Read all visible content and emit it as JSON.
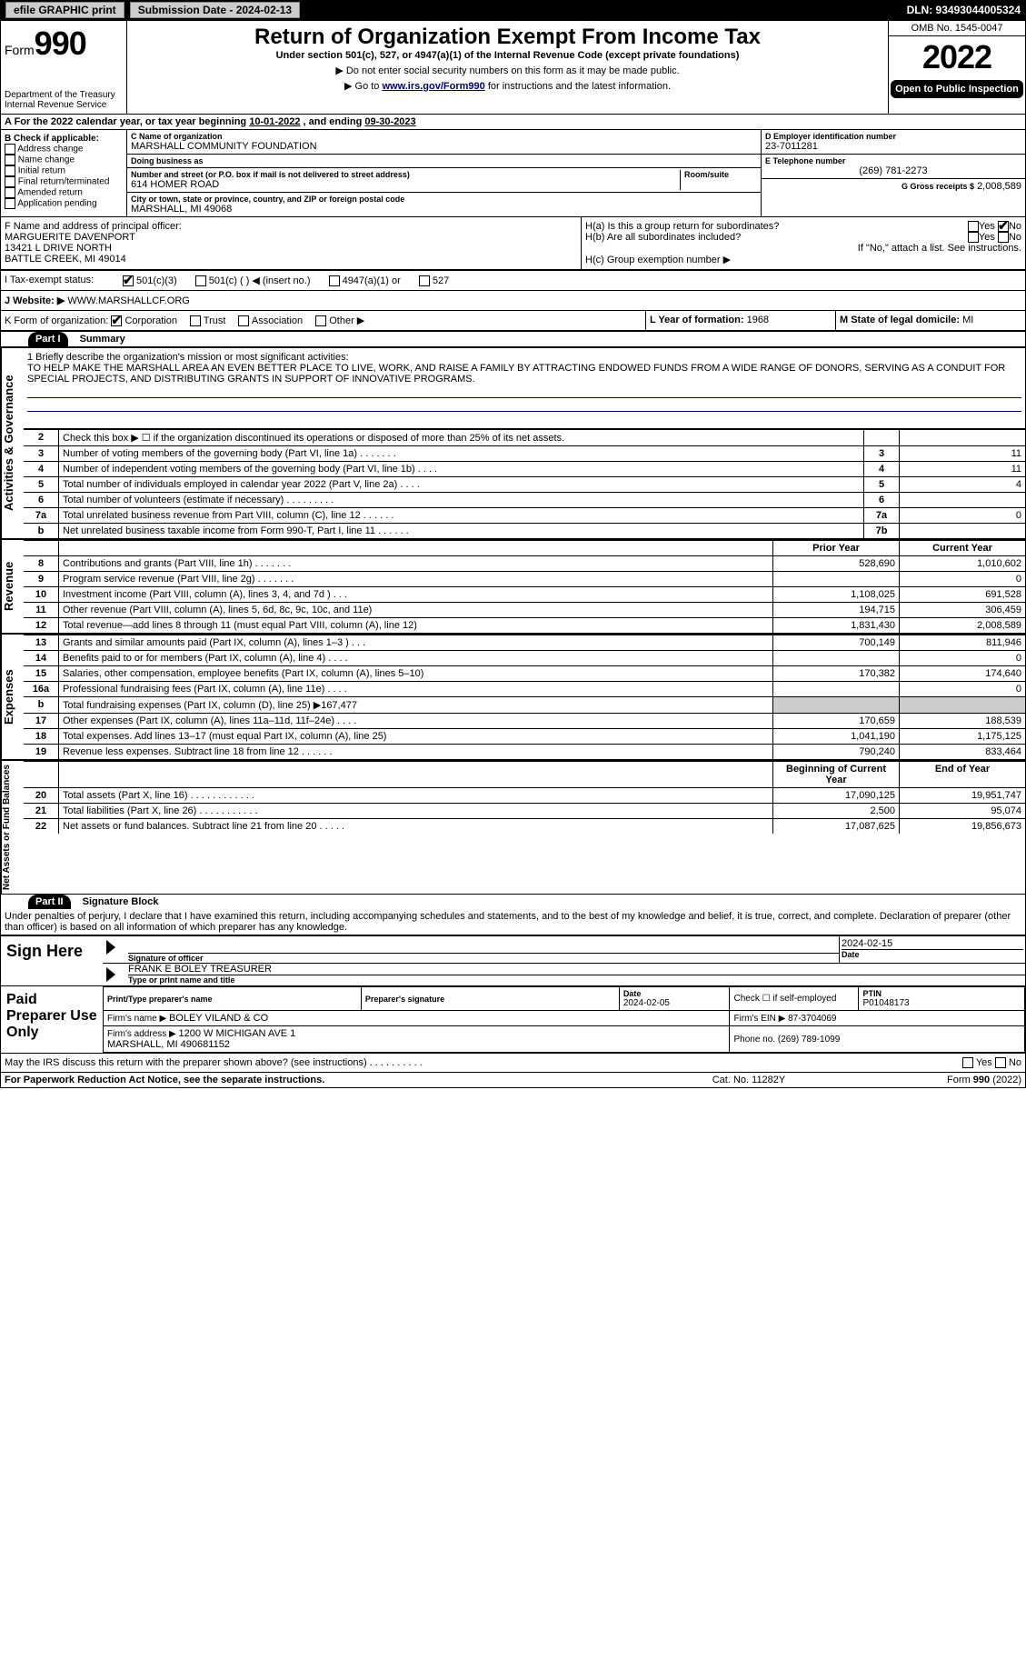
{
  "topbar": {
    "efile": "efile GRAPHIC print",
    "submission_btn": "Submission Date - 2024-02-13",
    "dln": "DLN: 93493044005324"
  },
  "header": {
    "form_label": "Form",
    "form_number": "990",
    "title": "Return of Organization Exempt From Income Tax",
    "subtitle": "Under section 501(c), 527, or 4947(a)(1) of the Internal Revenue Code (except private foundations)",
    "warn": "▶ Do not enter social security numbers on this form as it may be made public.",
    "goto_pre": "▶ Go to ",
    "goto_link": "www.irs.gov/Form990",
    "goto_post": " for instructions and the latest information.",
    "dept1": "Department of the Treasury",
    "dept2": "Internal Revenue Service",
    "omb": "OMB No. 1545-0047",
    "year": "2022",
    "open": "Open to Public Inspection"
  },
  "calyear": {
    "label_a": "A For the 2022 calendar year, or tax year beginning ",
    "begin": "10-01-2022",
    "mid": " , and ending ",
    "end": "09-30-2023"
  },
  "boxB": {
    "hdr": "B Check if applicable:",
    "opts": [
      "Address change",
      "Name change",
      "Initial return",
      "Final return/terminated",
      "Amended return",
      "Application pending"
    ]
  },
  "boxC": {
    "name_label": "C Name of organization",
    "name": "MARSHALL COMMUNITY FOUNDATION",
    "dba_label": "Doing business as",
    "dba": "",
    "street_label": "Number and street (or P.O. box if mail is not delivered to street address)",
    "room_label": "Room/suite",
    "street": "614 HOMER ROAD",
    "city_label": "City or town, state or province, country, and ZIP or foreign postal code",
    "city": "MARSHALL, MI  49068"
  },
  "boxD": {
    "label": "D Employer identification number",
    "value": "23-7011281"
  },
  "boxE": {
    "label": "E Telephone number",
    "value": "(269) 781-2273"
  },
  "boxG": {
    "label": "G Gross receipts $",
    "value": "2,008,589"
  },
  "boxF": {
    "label": "F Name and address of principal officer:",
    "name": "MARGUERITE DAVENPORT",
    "addr1": "13421 L DRIVE NORTH",
    "addr2": "BATTLE CREEK, MI  49014"
  },
  "boxH": {
    "a_label": "H(a)  Is this a group return for subordinates?",
    "a_yes": "Yes",
    "a_no": "No",
    "b_label": "H(b)  Are all subordinates included?",
    "b_yes": "Yes",
    "b_no": "No",
    "b_note": "If \"No,\" attach a list. See instructions.",
    "c_label": "H(c)  Group exemption number ▶"
  },
  "taxstatus": {
    "prefix": "I  Tax-exempt status:",
    "opts": [
      "501(c)(3)",
      "501(c) (   ) ◀ (insert no.)",
      "4947(a)(1) or",
      "527"
    ],
    "checked_index": 0
  },
  "boxJ": {
    "label": "J  Website: ▶",
    "value": "WWW.MARSHALLCF.ORG"
  },
  "boxK": {
    "label": "K Form of organization:",
    "opts": [
      "Corporation",
      "Trust",
      "Association",
      "Other ▶"
    ],
    "checked_index": 0
  },
  "boxL": {
    "label": "L Year of formation:",
    "value": "1968"
  },
  "boxM": {
    "label": "M State of legal domicile:",
    "value": "MI"
  },
  "part1": {
    "hdr": "Part I",
    "title": "Summary",
    "mission_prompt": "1  Briefly describe the organization's mission or most significant activities:",
    "mission": "TO HELP MAKE THE MARSHALL AREA AN EVEN BETTER PLACE TO LIVE, WORK, AND RAISE A FAMILY BY ATTRACTING ENDOWED FUNDS FROM A WIDE RANGE OF DONORS, SERVING AS A CONDUIT FOR SPECIAL PROJECTS, AND DISTRIBUTING GRANTS IN SUPPORT OF INNOVATIVE PROGRAMS."
  },
  "activities_side": "Activities & Governance",
  "activities": [
    {
      "n": "2",
      "label": "Check this box ▶ ☐  if the organization discontinued its operations or disposed of more than 25% of its net assets.",
      "k": "",
      "v": ""
    },
    {
      "n": "3",
      "label": "Number of voting members of the governing body (Part VI, line 1a)  .   .   .   .   .   .   .",
      "k": "3",
      "v": "11"
    },
    {
      "n": "4",
      "label": "Number of independent voting members of the governing body (Part VI, line 1b)  .   .   .   .",
      "k": "4",
      "v": "11"
    },
    {
      "n": "5",
      "label": "Total number of individuals employed in calendar year 2022 (Part V, line 2a)  .   .   .   .",
      "k": "5",
      "v": "4"
    },
    {
      "n": "6",
      "label": "Total number of volunteers (estimate if necessary)  .   .   .   .   .   .   .   .   .",
      "k": "6",
      "v": ""
    },
    {
      "n": "7a",
      "label": "Total unrelated business revenue from Part VIII, column (C), line 12  .   .   .   .   .   .",
      "k": "7a",
      "v": "0"
    },
    {
      "n": "b",
      "label": "Net unrelated business taxable income from Form 990-T, Part I, line 11  .   .   .   .   .   .",
      "k": "7b",
      "v": ""
    }
  ],
  "revenue_side": "Revenue",
  "revenue_hdr": {
    "prior": "Prior Year",
    "current": "Current Year"
  },
  "revenue": [
    {
      "n": "8",
      "label": "Contributions and grants (Part VIII, line 1h)  .   .   .   .   .   .   .",
      "p": "528,690",
      "c": "1,010,602"
    },
    {
      "n": "9",
      "label": "Program service revenue (Part VIII, line 2g)  .   .   .   .   .   .   .",
      "p": "",
      "c": "0"
    },
    {
      "n": "10",
      "label": "Investment income (Part VIII, column (A), lines 3, 4, and 7d )  .   .   .",
      "p": "1,108,025",
      "c": "691,528"
    },
    {
      "n": "11",
      "label": "Other revenue (Part VIII, column (A), lines 5, 6d, 8c, 9c, 10c, and 11e)",
      "p": "194,715",
      "c": "306,459"
    },
    {
      "n": "12",
      "label": "Total revenue—add lines 8 through 11 (must equal Part VIII, column (A), line 12)",
      "p": "1,831,430",
      "c": "2,008,589"
    }
  ],
  "expenses_side": "Expenses",
  "expenses": [
    {
      "n": "13",
      "label": "Grants and similar amounts paid (Part IX, column (A), lines 1–3 )  .   .   .",
      "p": "700,149",
      "c": "811,946"
    },
    {
      "n": "14",
      "label": "Benefits paid to or for members (Part IX, column (A), line 4)  .   .   .   .",
      "p": "",
      "c": "0"
    },
    {
      "n": "15",
      "label": "Salaries, other compensation, employee benefits (Part IX, column (A), lines 5–10)",
      "p": "170,382",
      "c": "174,640"
    },
    {
      "n": "16a",
      "label": "Professional fundraising fees (Part IX, column (A), line 11e)  .   .   .   .",
      "p": "",
      "c": "0"
    },
    {
      "n": "b",
      "label": "Total fundraising expenses (Part IX, column (D), line 25) ▶167,477",
      "p": "shade",
      "c": "shade"
    },
    {
      "n": "17",
      "label": "Other expenses (Part IX, column (A), lines 11a–11d, 11f–24e)  .   .   .   .",
      "p": "170,659",
      "c": "188,539"
    },
    {
      "n": "18",
      "label": "Total expenses. Add lines 13–17 (must equal Part IX, column (A), line 25)",
      "p": "1,041,190",
      "c": "1,175,125"
    },
    {
      "n": "19",
      "label": "Revenue less expenses. Subtract line 18 from line 12  .   .   .   .   .   .",
      "p": "790,240",
      "c": "833,464"
    }
  ],
  "netassets_side": "Net Assets or Fund Balances",
  "netassets_hdr": {
    "begin": "Beginning of Current Year",
    "end": "End of Year"
  },
  "netassets": [
    {
      "n": "20",
      "label": "Total assets (Part X, line 16)  .   .   .   .   .   .   .   .   .   .   .   .",
      "p": "17,090,125",
      "c": "19,951,747"
    },
    {
      "n": "21",
      "label": "Total liabilities (Part X, line 26)  .   .   .   .   .   .   .   .   .   .   .",
      "p": "2,500",
      "c": "95,074"
    },
    {
      "n": "22",
      "label": "Net assets or fund balances. Subtract line 21 from line 20  .   .   .   .   .",
      "p": "17,087,625",
      "c": "19,856,673"
    }
  ],
  "part2": {
    "hdr": "Part II",
    "title": "Signature Block",
    "penalty": "Under penalties of perjury, I declare that I have examined this return, including accompanying schedules and statements, and to the best of my knowledge and belief, it is true, correct, and complete. Declaration of preparer (other than officer) is based on all information of which preparer has any knowledge."
  },
  "sign": {
    "here": "Sign Here",
    "sig_officer": "Signature of officer",
    "date": "Date",
    "date_val": "2024-02-15",
    "name": "FRANK E BOLEY TREASURER",
    "name_label": "Type or print name and title"
  },
  "paid": {
    "here": "Paid Preparer Use Only",
    "print_label": "Print/Type preparer's name",
    "print": "",
    "sig_label": "Preparer's signature",
    "date_label": "Date",
    "date": "2024-02-05",
    "check_label": "Check ☐ if self-employed",
    "ptin_label": "PTIN",
    "ptin": "P01048173",
    "firm_name_label": "Firm's name    ▶",
    "firm_name": "BOLEY VILAND & CO",
    "firm_ein_label": "Firm's EIN ▶",
    "firm_ein": "87-3704069",
    "firm_addr_label": "Firm's address ▶",
    "firm_addr": "1200 W MICHIGAN AVE 1\nMARSHALL, MI  490681152",
    "phone_label": "Phone no.",
    "phone": "(269) 789-1099"
  },
  "discuss": {
    "q": "May the IRS discuss this return with the preparer shown above? (see instructions)  .   .   .   .   .   .   .   .   .   .",
    "yes": "Yes",
    "no": "No"
  },
  "footer": {
    "left": "For Paperwork Reduction Act Notice, see the separate instructions.",
    "mid": "Cat. No. 11282Y",
    "right": "Form 990 (2022)"
  }
}
